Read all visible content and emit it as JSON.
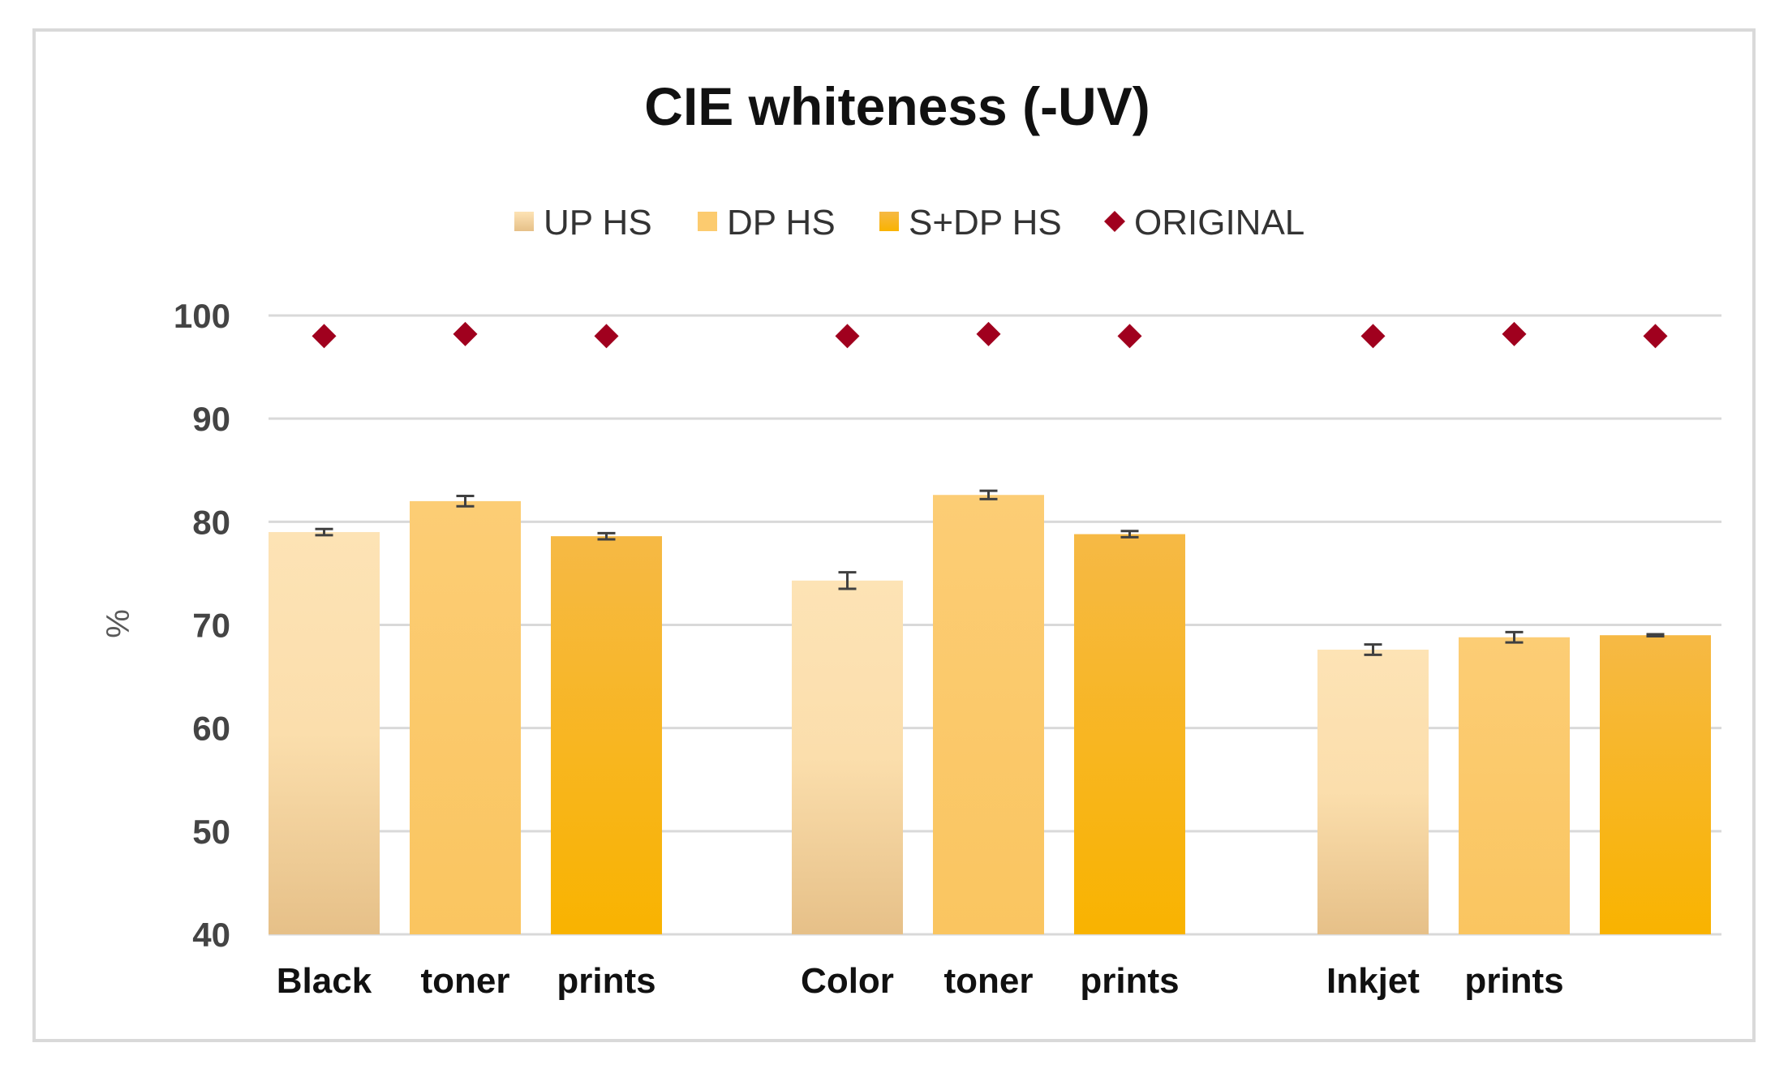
{
  "chart_data": {
    "type": "bar",
    "title": "CIE whiteness (-UV)",
    "ylabel": "%",
    "ylim": [
      40,
      100
    ],
    "yticks": [
      40,
      50,
      60,
      70,
      80,
      90,
      100
    ],
    "grid": true,
    "legend_position": "top",
    "categories": [
      "Black toner prints",
      "Color toner prints",
      "Inkjet prints"
    ],
    "category_words": [
      [
        "Black",
        "toner",
        "prints"
      ],
      [
        "Color",
        "toner",
        "prints"
      ],
      [
        "Inkjet",
        "prints"
      ]
    ],
    "series": [
      {
        "name": "UP HS",
        "type": "bar",
        "values": [
          79.0,
          74.3,
          67.6
        ],
        "errors": [
          0.3,
          0.8,
          0.5
        ],
        "color": "#fde3b5"
      },
      {
        "name": "DP HS",
        "type": "bar",
        "values": [
          82.0,
          82.6,
          68.8
        ],
        "errors": [
          0.5,
          0.4,
          0.5
        ],
        "color": "#fccb6f"
      },
      {
        "name": "S+DP HS",
        "type": "bar",
        "values": [
          78.6,
          78.8,
          69.0
        ],
        "errors": [
          0.3,
          0.3,
          0.1
        ],
        "color": "#f7b82f"
      },
      {
        "name": "ORIGINAL",
        "type": "marker",
        "values": [
          [
            98.0,
            98.2,
            98.0
          ],
          [
            98.0,
            98.2,
            98.0
          ],
          [
            98.0,
            98.2,
            98.0
          ]
        ],
        "color": "#a0001e"
      }
    ]
  }
}
